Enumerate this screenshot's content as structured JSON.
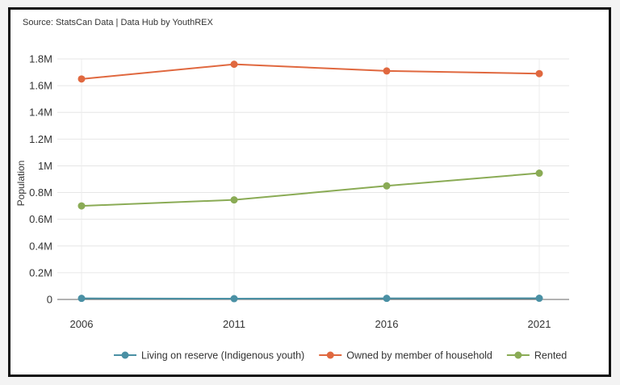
{
  "source_note": "Source: StatsCan Data | Data Hub by YouthREX",
  "chart_data": {
    "type": "line",
    "title": "",
    "xlabel": "",
    "ylabel": "Population",
    "x": [
      "2006",
      "2011",
      "2016",
      "2021"
    ],
    "ylim": [
      0,
      1800000
    ],
    "yticks": [
      0,
      200000,
      400000,
      600000,
      800000,
      1000000,
      1200000,
      1400000,
      1600000,
      1800000
    ],
    "ytick_labels": [
      "0",
      "0.2M",
      "0.4M",
      "0.6M",
      "0.8M",
      "1M",
      "1.2M",
      "1.4M",
      "1.6M",
      "1.8M"
    ],
    "grid": true,
    "legend_position": "bottom",
    "series": [
      {
        "name": "Living on reserve (Indigenous youth)",
        "color": "#4a90a4",
        "values": [
          8000,
          6000,
          8000,
          9000
        ]
      },
      {
        "name": "Owned by member of household",
        "color": "#e0683f",
        "values": [
          1650000,
          1760000,
          1710000,
          1690000
        ]
      },
      {
        "name": "Rented",
        "color": "#8aab55",
        "values": [
          700000,
          745000,
          850000,
          945000
        ]
      }
    ]
  }
}
